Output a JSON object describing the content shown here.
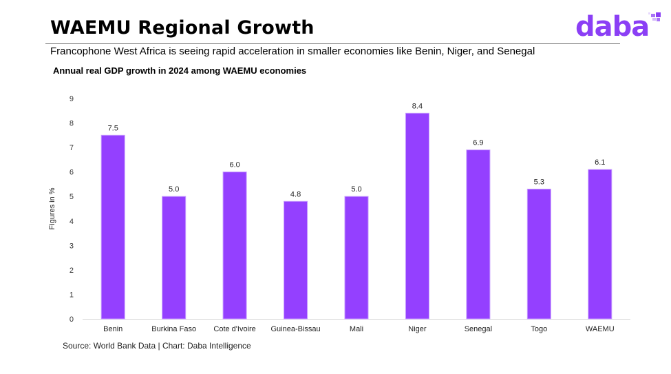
{
  "header": {
    "title": "WAEMU Regional Growth",
    "subtitle": "Francophone West Africa is seeing rapid acceleration in smaller economies like Benin, Niger, and Senegal"
  },
  "logo": {
    "text": "daba",
    "icon": "daba-sparkle-icon",
    "color": "#8b3ff5"
  },
  "source": "Source: World Bank Data | Chart: Daba Intelligence",
  "chart_data": {
    "type": "bar",
    "title": "Annual real GDP growth in 2024 among WAEMU economies",
    "xlabel": "",
    "ylabel": "Figures in %",
    "categories": [
      "Benin",
      "Burkina Faso",
      "Cote d'Ivoire",
      "Guinea-Bissau",
      "Mali",
      "Niger",
      "Senegal",
      "Togo",
      "WAEMU"
    ],
    "values": [
      7.5,
      5.0,
      6.0,
      4.8,
      5.0,
      8.4,
      6.9,
      5.3,
      6.1
    ],
    "data_labels": [
      "7.5",
      "5.0",
      "6.0",
      "4.8",
      "5.0",
      "8.4",
      "6.9",
      "5.3",
      "6.1"
    ],
    "ylim": [
      0,
      9
    ],
    "yticks": [
      0,
      1,
      2,
      3,
      4,
      5,
      6,
      7,
      8,
      9
    ],
    "grid": false,
    "legend": "none",
    "bar_color": "#9440ff",
    "bar_edge_color": "#c79bff"
  }
}
